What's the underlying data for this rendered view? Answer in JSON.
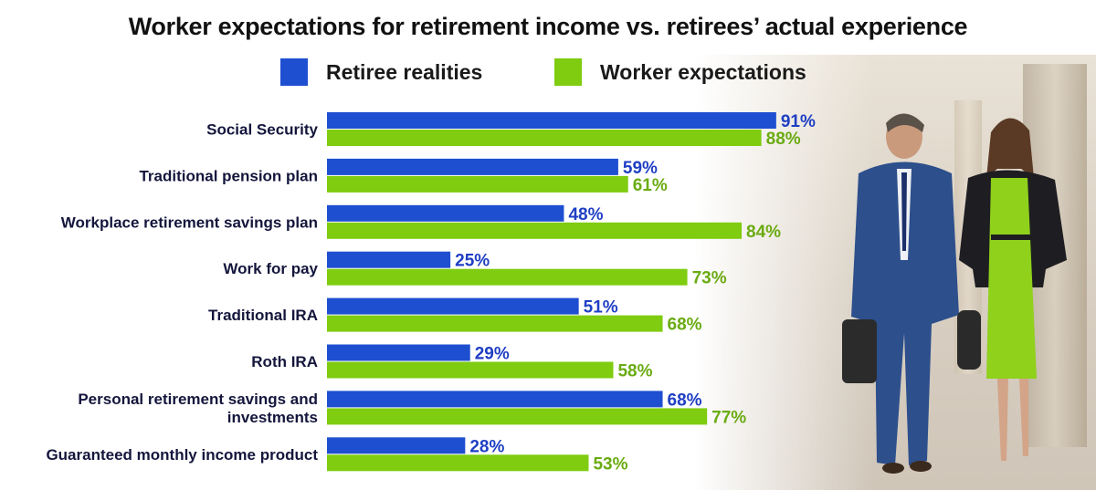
{
  "chart_data": {
    "type": "bar",
    "orientation": "horizontal",
    "title": "Worker expectations for retirement income vs. retirees’ actual experience",
    "legend_placement": "top",
    "grid": false,
    "xlim": [
      0,
      100
    ],
    "value_suffix": "%",
    "categories": [
      [
        "Social Security"
      ],
      [
        "Traditional pension plan"
      ],
      [
        "Workplace retirement savings plan"
      ],
      [
        "Work for pay"
      ],
      [
        "Traditional IRA"
      ],
      [
        "Roth IRA"
      ],
      [
        "Personal retirement savings and",
        "investments"
      ],
      [
        "Guaranteed monthly income product"
      ]
    ],
    "series": [
      {
        "name": "Retiree realities",
        "color": "#1f4fd1",
        "label_color": "#1f3fc4",
        "values": [
          91,
          59,
          48,
          25,
          51,
          29,
          68,
          28
        ]
      },
      {
        "name": "Worker expectations",
        "color": "#7fcc10",
        "label_color": "#6aab12",
        "values": [
          88,
          61,
          84,
          73,
          68,
          58,
          77,
          53
        ]
      }
    ]
  }
}
